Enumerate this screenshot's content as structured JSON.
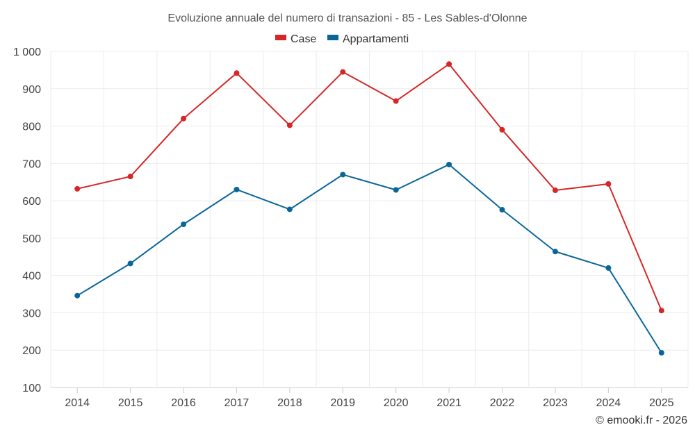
{
  "chart_data": {
    "type": "line",
    "title": "Evoluzione annuale del numero di transazioni - 85 - Les Sables-d'Olonne",
    "categories": [
      "2014",
      "2015",
      "2016",
      "2017",
      "2018",
      "2019",
      "2020",
      "2021",
      "2022",
      "2023",
      "2024",
      "2025"
    ],
    "series": [
      {
        "name": "Case",
        "color": "#d62728",
        "values": [
          632,
          665,
          820,
          942,
          802,
          945,
          867,
          966,
          790,
          628,
          645,
          306
        ]
      },
      {
        "name": "Appartamenti",
        "color": "#0a6699",
        "values": [
          346,
          432,
          537,
          630,
          577,
          670,
          629,
          697,
          576,
          464,
          420,
          193
        ]
      }
    ],
    "ylim": [
      100,
      1000
    ],
    "yticks": [
      100,
      200,
      300,
      400,
      500,
      600,
      700,
      800,
      900,
      1000
    ],
    "ytick_labels": [
      "100",
      "200",
      "300",
      "400",
      "500",
      "600",
      "700",
      "800",
      "900",
      "1 000"
    ],
    "xlabel": "",
    "ylabel": "",
    "grid": true,
    "legend_position": "top-center"
  },
  "credit": "© emooki.fr - 2026"
}
